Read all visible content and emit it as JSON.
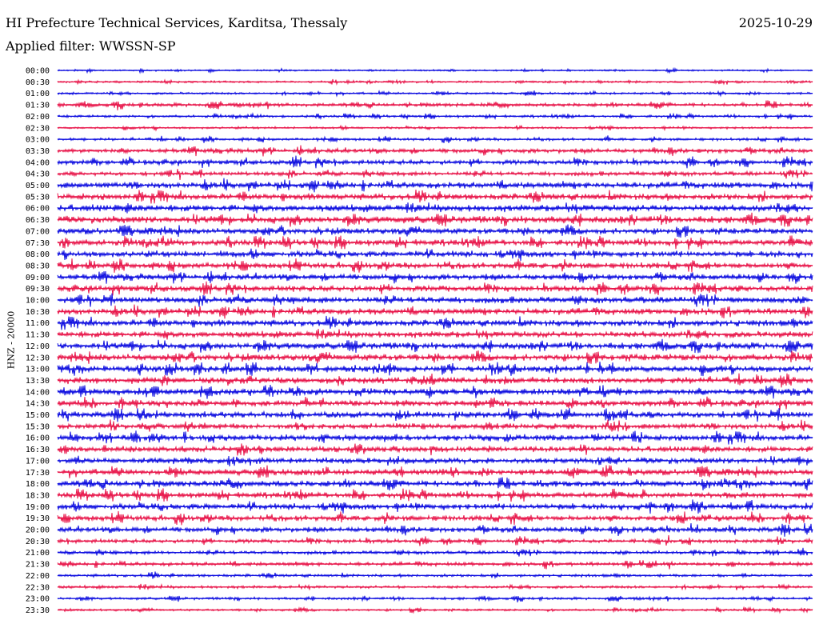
{
  "header": {
    "station": "HI Prefecture Technical Services, Karditsa, Thessaly",
    "date": "2025-10-29",
    "filter": "Applied filter: WWSSN-SP"
  },
  "chart_data": {
    "type": "line",
    "title": "HI Prefecture Technical Services, Karditsa, Thessaly",
    "ylabel": "HNZ - 20000",
    "xlabel": "",
    "colors": {
      "odd_trace": "#1010e0",
      "even_trace": "#e8174b"
    },
    "rows": [
      {
        "label": "00:00",
        "amp": 1.2,
        "color": "blue"
      },
      {
        "label": "00:30",
        "amp": 1.5,
        "color": "red"
      },
      {
        "label": "01:00",
        "amp": 1.6,
        "color": "blue"
      },
      {
        "label": "01:30",
        "amp": 2.6,
        "color": "red"
      },
      {
        "label": "02:00",
        "amp": 1.8,
        "color": "blue"
      },
      {
        "label": "02:30",
        "amp": 1.6,
        "color": "red"
      },
      {
        "label": "03:00",
        "amp": 1.9,
        "color": "blue"
      },
      {
        "label": "03:30",
        "amp": 3.2,
        "color": "red"
      },
      {
        "label": "04:00",
        "amp": 3.4,
        "color": "blue"
      },
      {
        "label": "04:30",
        "amp": 3.0,
        "color": "red"
      },
      {
        "label": "05:00",
        "amp": 4.5,
        "color": "blue"
      },
      {
        "label": "05:30",
        "amp": 4.6,
        "color": "red"
      },
      {
        "label": "06:00",
        "amp": 5.0,
        "color": "blue"
      },
      {
        "label": "06:30",
        "amp": 5.2,
        "color": "red"
      },
      {
        "label": "07:00",
        "amp": 4.4,
        "color": "blue"
      },
      {
        "label": "07:30",
        "amp": 4.6,
        "color": "red"
      },
      {
        "label": "08:00",
        "amp": 4.5,
        "color": "blue"
      },
      {
        "label": "08:30",
        "amp": 4.3,
        "color": "red"
      },
      {
        "label": "09:00",
        "amp": 4.3,
        "color": "blue"
      },
      {
        "label": "09:30",
        "amp": 4.4,
        "color": "red"
      },
      {
        "label": "10:00",
        "amp": 4.6,
        "color": "blue"
      },
      {
        "label": "10:30",
        "amp": 4.5,
        "color": "red"
      },
      {
        "label": "11:00",
        "amp": 4.6,
        "color": "blue"
      },
      {
        "label": "11:30",
        "amp": 4.6,
        "color": "red"
      },
      {
        "label": "12:00",
        "amp": 4.8,
        "color": "blue"
      },
      {
        "label": "12:30",
        "amp": 5.0,
        "color": "red"
      },
      {
        "label": "13:00",
        "amp": 4.8,
        "color": "blue"
      },
      {
        "label": "13:30",
        "amp": 4.6,
        "color": "red"
      },
      {
        "label": "14:00",
        "amp": 4.6,
        "color": "blue"
      },
      {
        "label": "14:30",
        "amp": 4.4,
        "color": "red"
      },
      {
        "label": "15:00",
        "amp": 4.6,
        "color": "blue"
      },
      {
        "label": "15:30",
        "amp": 4.0,
        "color": "red"
      },
      {
        "label": "16:00",
        "amp": 4.5,
        "color": "blue"
      },
      {
        "label": "16:30",
        "amp": 4.2,
        "color": "red"
      },
      {
        "label": "17:00",
        "amp": 4.3,
        "color": "blue"
      },
      {
        "label": "17:30",
        "amp": 4.3,
        "color": "red"
      },
      {
        "label": "18:00",
        "amp": 4.6,
        "color": "blue"
      },
      {
        "label": "18:30",
        "amp": 4.2,
        "color": "red"
      },
      {
        "label": "19:00",
        "amp": 4.4,
        "color": "blue"
      },
      {
        "label": "19:30",
        "amp": 4.0,
        "color": "red"
      },
      {
        "label": "20:00",
        "amp": 3.8,
        "color": "blue"
      },
      {
        "label": "20:30",
        "amp": 2.8,
        "color": "red"
      },
      {
        "label": "21:00",
        "amp": 2.4,
        "color": "blue"
      },
      {
        "label": "21:30",
        "amp": 2.6,
        "color": "red"
      },
      {
        "label": "22:00",
        "amp": 2.0,
        "color": "blue"
      },
      {
        "label": "22:30",
        "amp": 2.0,
        "color": "red"
      },
      {
        "label": "23:00",
        "amp": 1.8,
        "color": "blue"
      },
      {
        "label": "23:30",
        "amp": 1.6,
        "color": "red"
      }
    ],
    "grid": false,
    "legend": "none"
  }
}
